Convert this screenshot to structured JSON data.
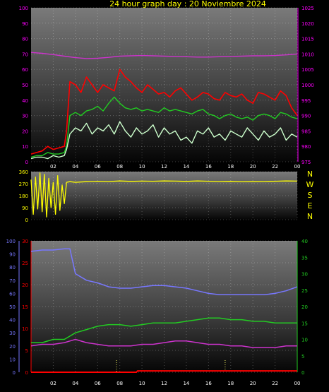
{
  "title": "24 hour graph day : 20 Noviembre 2024",
  "colors": {
    "background": "#000000",
    "panel_top": "#7a7a7a",
    "panel_bottom": "#000000",
    "grid": "#ffffff",
    "title": "#ffff00",
    "gust": "#ff0000",
    "average": "#22cc22",
    "wind": "#ccffcc",
    "pressure": "#cc33cc",
    "direction": "#ffff00",
    "humidity": "#7777ff",
    "rain": "#ff0000",
    "temperature": "#22cc22",
    "dewpoint": "#cc33cc",
    "marker": "#ffff66"
  },
  "chart_data": [
    {
      "type": "line",
      "x_ticks": [
        "02",
        "04",
        "06",
        "08",
        "10",
        "12",
        "14",
        "16",
        "18",
        "20",
        "22",
        "00"
      ],
      "x_range_hours": [
        0,
        24
      ],
      "left_axis": {
        "ticks": [
          0,
          10,
          20,
          30,
          40,
          50,
          60,
          70,
          80,
          90,
          100
        ],
        "range": [
          0,
          100
        ],
        "color": "#ff00ff"
      },
      "right_axis": {
        "ticks": [
          975,
          980,
          985,
          990,
          995,
          1000,
          1005,
          1010,
          1015,
          1020,
          1025
        ],
        "range": [
          975,
          1025
        ],
        "color": "#ff00ff"
      },
      "grid": true,
      "series": [
        {
          "key": "gust",
          "axis": "left",
          "color": "#ff0000",
          "x": [
            0,
            0.5,
            1,
            1.5,
            2,
            2.5,
            3,
            3.2,
            3.5,
            4,
            4.5,
            5,
            5.5,
            6,
            6.5,
            7,
            7.5,
            8,
            8.5,
            9,
            9.5,
            10,
            10.5,
            11,
            11.5,
            12,
            12.5,
            13,
            13.5,
            14,
            14.5,
            15,
            15.5,
            16,
            16.5,
            17,
            17.5,
            18,
            18.5,
            19,
            19.5,
            20,
            20.5,
            21,
            21.5,
            22,
            22.5,
            23,
            23.5,
            24
          ],
          "y": [
            5,
            6,
            7,
            10,
            8,
            9,
            10,
            20,
            52,
            50,
            45,
            55,
            50,
            45,
            50,
            48,
            46,
            60,
            55,
            52,
            48,
            45,
            50,
            47,
            44,
            45,
            42,
            46,
            48,
            44,
            40,
            42,
            45,
            44,
            41,
            40,
            45,
            43,
            42,
            44,
            40,
            38,
            45,
            44,
            42,
            40,
            46,
            43,
            35,
            30
          ]
        },
        {
          "key": "average",
          "axis": "left",
          "color": "#22cc22",
          "x": [
            0,
            0.5,
            1,
            1.5,
            2,
            2.5,
            3,
            3.2,
            3.5,
            4,
            4.5,
            5,
            5.5,
            6,
            6.5,
            7,
            7.5,
            8,
            8.5,
            9,
            9.5,
            10,
            10.5,
            11,
            11.5,
            12,
            12.5,
            13,
            13.5,
            14,
            14.5,
            15,
            15.5,
            16,
            16.5,
            17,
            17.5,
            18,
            18.5,
            19,
            19.5,
            20,
            20.5,
            21,
            21.5,
            22,
            22.5,
            23,
            23.5,
            24
          ],
          "y": [
            3,
            4,
            4,
            6,
            5,
            5,
            6,
            10,
            30,
            32,
            30,
            33,
            34,
            36,
            33,
            38,
            42,
            38,
            35,
            34,
            35,
            33,
            34,
            33,
            32,
            35,
            33,
            34,
            33,
            32,
            31,
            33,
            34,
            31,
            30,
            28,
            30,
            31,
            29,
            28,
            29,
            27,
            30,
            31,
            30,
            28,
            32,
            31,
            29,
            28
          ]
        },
        {
          "key": "wind",
          "axis": "left",
          "color": "#ccffcc",
          "x": [
            0,
            0.5,
            1,
            1.5,
            2,
            2.5,
            3,
            3.2,
            3.5,
            4,
            4.5,
            5,
            5.5,
            6,
            6.5,
            7,
            7.5,
            8,
            8.5,
            9,
            9.5,
            10,
            10.5,
            11,
            11.5,
            12,
            12.5,
            13,
            13.5,
            14,
            14.5,
            15,
            15.5,
            16,
            16.5,
            17,
            17.5,
            18,
            18.5,
            19,
            19.5,
            20,
            20.5,
            21,
            21.5,
            22,
            22.5,
            23,
            23.5,
            24
          ],
          "y": [
            2,
            3,
            3,
            2,
            4,
            3,
            4,
            8,
            18,
            22,
            20,
            25,
            18,
            22,
            20,
            24,
            18,
            26,
            20,
            16,
            22,
            18,
            20,
            24,
            16,
            22,
            18,
            20,
            14,
            16,
            12,
            20,
            18,
            22,
            16,
            18,
            14,
            20,
            18,
            16,
            22,
            18,
            14,
            20,
            16,
            18,
            22,
            14,
            18,
            16
          ]
        },
        {
          "key": "pressure",
          "axis": "right",
          "color": "#cc33cc",
          "x": [
            0,
            1,
            2,
            3,
            4,
            5,
            6,
            7,
            8,
            9,
            10,
            11,
            12,
            13,
            14,
            15,
            16,
            17,
            18,
            19,
            20,
            21,
            22,
            23,
            24
          ],
          "y": [
            1010.5,
            1010.2,
            1009.8,
            1009.3,
            1008.8,
            1008.5,
            1008.6,
            1008.9,
            1009.3,
            1009.4,
            1009.5,
            1009.4,
            1009.3,
            1009.2,
            1009.1,
            1009.0,
            1009.0,
            1009.1,
            1009.2,
            1009.3,
            1009.4,
            1009.4,
            1009.5,
            1009.7,
            1010.0
          ]
        }
      ]
    },
    {
      "type": "line",
      "x_range_hours": [
        0,
        24
      ],
      "left_axis": {
        "ticks": [
          0,
          90,
          180,
          270,
          360
        ],
        "range": [
          0,
          360
        ],
        "color": "#ffff00"
      },
      "right_labels": [
        "N",
        "W",
        "S",
        "E",
        "N"
      ],
      "grid": true,
      "series": [
        {
          "key": "direction",
          "color": "#ffff00",
          "x": [
            0,
            0.2,
            0.4,
            0.6,
            0.8,
            1,
            1.2,
            1.4,
            1.6,
            1.8,
            2,
            2.2,
            2.4,
            2.6,
            2.8,
            3,
            3.2,
            3.5,
            4,
            5,
            6,
            7,
            8,
            9,
            10,
            11,
            12,
            13,
            14,
            15,
            16,
            17,
            18,
            19,
            20,
            21,
            22,
            23,
            24
          ],
          "y": [
            300,
            40,
            320,
            80,
            350,
            60,
            340,
            20,
            310,
            90,
            280,
            40,
            330,
            70,
            260,
            120,
            280,
            285,
            280,
            285,
            288,
            286,
            290,
            287,
            289,
            288,
            290,
            289,
            287,
            290,
            288,
            286,
            287,
            284,
            285,
            286,
            288,
            290,
            289
          ]
        }
      ]
    },
    {
      "type": "line",
      "x_ticks": [
        "02",
        "04",
        "06",
        "08",
        "10",
        "12",
        "14",
        "16",
        "18",
        "20",
        "22",
        "00"
      ],
      "x_range_hours": [
        0,
        24
      ],
      "humidity_axis": {
        "ticks": [
          0,
          10,
          20,
          30,
          40,
          50,
          60,
          70,
          80,
          90,
          100
        ],
        "range": [
          0,
          100
        ],
        "color": "#7777ff"
      },
      "rain_axis": {
        "ticks": [
          0,
          5,
          10,
          15,
          20,
          25,
          30
        ],
        "range": [
          0,
          30
        ],
        "color": "#ff0000"
      },
      "temperature_axis": {
        "ticks": [
          0,
          5,
          10,
          15,
          20,
          25,
          30,
          35,
          40
        ],
        "range": [
          0,
          40
        ],
        "color": "#22cc22"
      },
      "grid": true,
      "markers_hours": [
        7.7,
        17.5
      ],
      "series": [
        {
          "key": "humidity",
          "axis": "humidity",
          "color": "#7777ff",
          "x": [
            0,
            1,
            2,
            3,
            3.5,
            4,
            5,
            6,
            7,
            8,
            9,
            10,
            11,
            12,
            13,
            14,
            15,
            16,
            17,
            18,
            19,
            20,
            21,
            22,
            23,
            24
          ],
          "y": [
            92,
            93,
            93,
            94,
            94,
            75,
            70,
            68,
            65,
            64,
            64,
            65,
            66,
            66,
            65,
            64,
            62,
            60,
            59,
            59,
            59,
            59,
            59,
            60,
            62,
            65
          ]
        },
        {
          "key": "temperature",
          "axis": "temperature",
          "color": "#22cc22",
          "x": [
            0,
            1,
            2,
            3,
            3.5,
            4,
            5,
            6,
            7,
            8,
            9,
            10,
            11,
            12,
            13,
            14,
            15,
            16,
            17,
            18,
            19,
            20,
            21,
            22,
            23,
            24
          ],
          "y": [
            9,
            9,
            10,
            10,
            11,
            12,
            13,
            14,
            14.5,
            14.5,
            14,
            14.5,
            15,
            15,
            15,
            15.5,
            16,
            16.5,
            16.5,
            16,
            16,
            15.5,
            15.5,
            15,
            15,
            15
          ]
        },
        {
          "key": "dewpoint",
          "axis": "temperature",
          "color": "#cc33cc",
          "x": [
            0,
            1,
            2,
            3,
            3.5,
            4,
            5,
            6,
            7,
            8,
            9,
            10,
            11,
            12,
            13,
            14,
            15,
            16,
            17,
            18,
            19,
            20,
            21,
            22,
            23,
            24
          ],
          "y": [
            8,
            8.5,
            8.5,
            9,
            9.5,
            10,
            9,
            8.5,
            8,
            8,
            8,
            8.5,
            8.5,
            9,
            9.5,
            9.5,
            9,
            8.5,
            8.5,
            8,
            8,
            7.5,
            7.5,
            7.5,
            8,
            8
          ]
        },
        {
          "key": "rain",
          "axis": "rain",
          "color": "#ff0000",
          "x": [
            0,
            9.5,
            9.6,
            24
          ],
          "y": [
            0,
            0,
            0.3,
            0.3
          ]
        }
      ]
    }
  ]
}
